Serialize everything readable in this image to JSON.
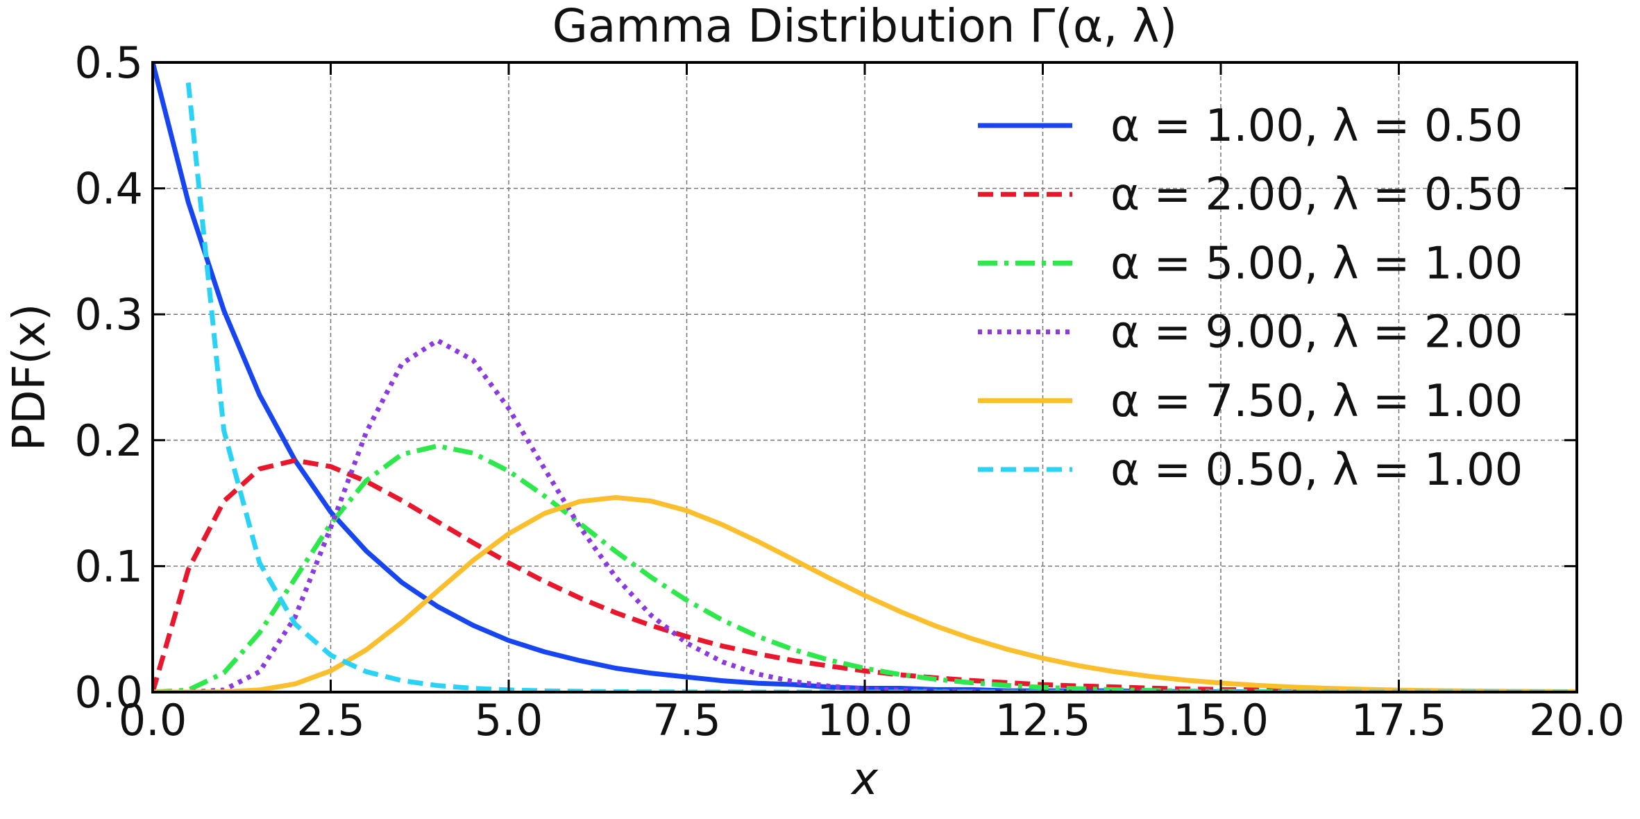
{
  "chart_data": {
    "type": "line",
    "title": "Gamma Distribution Γ(α, λ)",
    "xlabel": "x",
    "ylabel": "PDF(x)",
    "xlim": [
      0,
      20
    ],
    "ylim": [
      0,
      0.5
    ],
    "xticks": [
      {
        "value": 0,
        "label": "0.0"
      },
      {
        "value": 2.5,
        "label": "2.5"
      },
      {
        "value": 5,
        "label": "5.0"
      },
      {
        "value": 7.5,
        "label": "7.5"
      },
      {
        "value": 10,
        "label": "10.0"
      },
      {
        "value": 12.5,
        "label": "12.5"
      },
      {
        "value": 15,
        "label": "15.0"
      },
      {
        "value": 17.5,
        "label": "17.5"
      },
      {
        "value": 20,
        "label": "20.0"
      }
    ],
    "yticks": [
      {
        "value": 0,
        "label": "0.0"
      },
      {
        "value": 0.1,
        "label": "0.1"
      },
      {
        "value": 0.2,
        "label": "0.2"
      },
      {
        "value": 0.3,
        "label": "0.3"
      },
      {
        "value": 0.4,
        "label": "0.4"
      },
      {
        "value": 0.5,
        "label": "0.5"
      }
    ],
    "grid": true,
    "legend": "upper right",
    "x": [
      0,
      0.5,
      1,
      1.5,
      2,
      2.5,
      3,
      3.5,
      4,
      4.5,
      5,
      5.5,
      6,
      6.5,
      7,
      7.5,
      8,
      8.5,
      9,
      9.5,
      10,
      10.5,
      11,
      11.5,
      12,
      12.5,
      13,
      13.5,
      14,
      14.5,
      15,
      15.5,
      16,
      16.5,
      17,
      17.5,
      18,
      18.5,
      19,
      19.5,
      20
    ],
    "series": [
      {
        "name": "α = 1.00, λ = 0.50",
        "color": "#1746f0",
        "linestyle": "solid",
        "values": [
          0.5,
          0.389,
          0.303,
          0.236,
          0.184,
          0.143,
          0.112,
          0.087,
          0.068,
          0.053,
          0.041,
          0.032,
          0.025,
          0.019,
          0.015,
          0.012,
          0.009,
          0.007,
          0.006,
          0.004,
          0.003,
          0.003,
          0.002,
          0.002,
          0.001,
          0.001,
          0.001,
          0.001,
          0.0005,
          0.0004,
          0.0003,
          0.0002,
          0.0002,
          0.0001,
          0.0001,
          0.0001,
          0.0001,
          0.0001,
          0,
          0,
          0
        ]
      },
      {
        "name": "α = 2.00, λ = 0.50",
        "color": "#e8172c",
        "linestyle": "dashed",
        "values": [
          0,
          0.0974,
          0.1516,
          0.1772,
          0.184,
          0.1791,
          0.1673,
          0.1521,
          0.1353,
          0.1186,
          0.1026,
          0.0879,
          0.0747,
          0.0631,
          0.0529,
          0.0441,
          0.0366,
          0.0304,
          0.025,
          0.0207,
          0.0168,
          0.0137,
          0.0113,
          0.0092,
          0.0075,
          0.0059,
          0.0049,
          0.0041,
          0.0032,
          0.0025,
          0.0021,
          0.0017,
          0.0014,
          0.0011,
          0.0009,
          0.0007,
          0.0005,
          0.0005,
          0.0003,
          0.0003,
          0.0002
        ]
      },
      {
        "name": "α = 5.00, λ = 1.00",
        "color": "#2de84a",
        "linestyle": "dashdot",
        "values": [
          0,
          0.0016,
          0.0153,
          0.0471,
          0.0902,
          0.1336,
          0.168,
          0.1888,
          0.1954,
          0.1898,
          0.1755,
          0.1558,
          0.1339,
          0.1118,
          0.0912,
          0.0729,
          0.0572,
          0.0442,
          0.0337,
          0.0254,
          0.0189,
          0.0139,
          0.0102,
          0.0074,
          0.0053,
          0.0038,
          0.0027,
          0.0019,
          0.0013,
          0.0009,
          0.0006,
          0.0004,
          0.0003,
          0.0002,
          0.0001,
          0.0001,
          0,
          0,
          0,
          0,
          0
        ]
      },
      {
        "name": "α = 9.00, λ = 2.00",
        "color": "#8a3ae0",
        "linestyle": "dotted",
        "values": [
          0,
          0,
          0.0017,
          0.0162,
          0.0596,
          0.1306,
          0.2065,
          0.2608,
          0.2792,
          0.2635,
          0.2252,
          0.1776,
          0.131,
          0.0915,
          0.0609,
          0.0389,
          0.024,
          0.0143,
          0.0083,
          0.0047,
          0.0026,
          0.0014,
          0.0008,
          0.0004,
          0.0002,
          0.0001,
          0.0001,
          0,
          0,
          0,
          0,
          0,
          0,
          0,
          0,
          0,
          0,
          0,
          0,
          0,
          0
        ]
      },
      {
        "name": "α = 7.50, λ = 1.00",
        "color": "#fbbe2c",
        "linestyle": "solid",
        "values": [
          0,
          0,
          0.0002,
          0.0017,
          0.0065,
          0.0169,
          0.0336,
          0.0555,
          0.0802,
          0.1046,
          0.1258,
          0.1418,
          0.1514,
          0.1545,
          0.1517,
          0.1441,
          0.1329,
          0.1196,
          0.1052,
          0.0906,
          0.0767,
          0.0639,
          0.0524,
          0.0425,
          0.034,
          0.0269,
          0.021,
          0.0163,
          0.0125,
          0.0095,
          0.0072,
          0.0054,
          0.004,
          0.003,
          0.0022,
          0.0016,
          0.0012,
          0.0009,
          0.0006,
          0.0005,
          0.0003
        ]
      },
      {
        "name": "α = 0.50, λ = 1.00",
        "color": "#2ad3f5",
        "linestyle": "dashed",
        "values": [
          null,
          0.4839,
          0.2076,
          0.1028,
          0.054,
          0.0293,
          0.0162,
          0.0091,
          0.0052,
          0.003,
          0.0017,
          0.001,
          0.0006,
          0.0003,
          0.0002,
          0.0001,
          0.0001,
          0,
          0,
          0,
          0,
          0,
          0,
          0,
          0,
          0,
          0,
          0,
          0,
          0,
          0,
          0,
          0,
          0,
          0,
          0,
          0,
          0,
          0,
          0,
          0
        ]
      }
    ]
  }
}
